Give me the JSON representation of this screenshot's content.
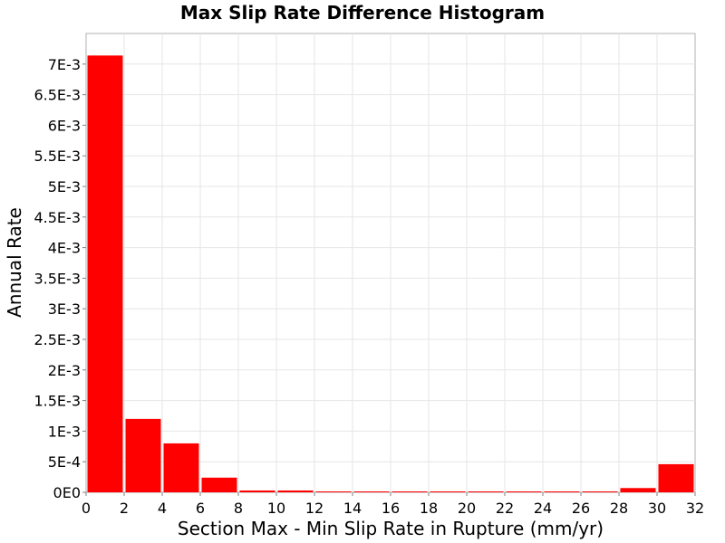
{
  "chart_data": {
    "type": "bar",
    "title": "Max Slip Rate Difference Histogram",
    "xlabel": "Section Max - Min Slip Rate in Rupture (mm/yr)",
    "ylabel": "Annual Rate",
    "xlim": [
      0,
      32
    ],
    "ylim": [
      0,
      0.0075
    ],
    "grid": true,
    "bar_color": "#ff0000",
    "bin_width": 2,
    "x_ticks": [
      "0",
      "2",
      "4",
      "6",
      "8",
      "10",
      "12",
      "14",
      "16",
      "18",
      "20",
      "22",
      "24",
      "26",
      "28",
      "30",
      "32"
    ],
    "x_tick_values": [
      0,
      2,
      4,
      6,
      8,
      10,
      12,
      14,
      16,
      18,
      20,
      22,
      24,
      26,
      28,
      30,
      32
    ],
    "y_ticks": [
      "0E0",
      "5E-4",
      "1E-3",
      "1.5E-3",
      "2E-3",
      "2.5E-3",
      "3E-3",
      "3.5E-3",
      "4E-3",
      "4.5E-3",
      "5E-3",
      "5.5E-3",
      "6E-3",
      "6.5E-3",
      "7E-3"
    ],
    "y_tick_values": [
      0,
      0.0005,
      0.001,
      0.0015,
      0.002,
      0.0025,
      0.003,
      0.0035,
      0.004,
      0.0045,
      0.005,
      0.0055,
      0.006,
      0.0065,
      0.007
    ],
    "bins": [
      {
        "x": 1,
        "value": 0.00714
      },
      {
        "x": 3,
        "value": 0.0012
      },
      {
        "x": 5,
        "value": 0.0008
      },
      {
        "x": 7,
        "value": 0.00024
      },
      {
        "x": 9,
        "value": 3e-05
      },
      {
        "x": 11,
        "value": 3e-05
      },
      {
        "x": 13,
        "value": 5e-06
      },
      {
        "x": 15,
        "value": 3e-06
      },
      {
        "x": 17,
        "value": 3e-06
      },
      {
        "x": 19,
        "value": 3e-06
      },
      {
        "x": 21,
        "value": 3e-06
      },
      {
        "x": 23,
        "value": 3e-06
      },
      {
        "x": 25,
        "value": 3e-06
      },
      {
        "x": 27,
        "value": 3e-06
      },
      {
        "x": 29,
        "value": 7e-05
      },
      {
        "x": 31,
        "value": 0.00046
      }
    ]
  }
}
